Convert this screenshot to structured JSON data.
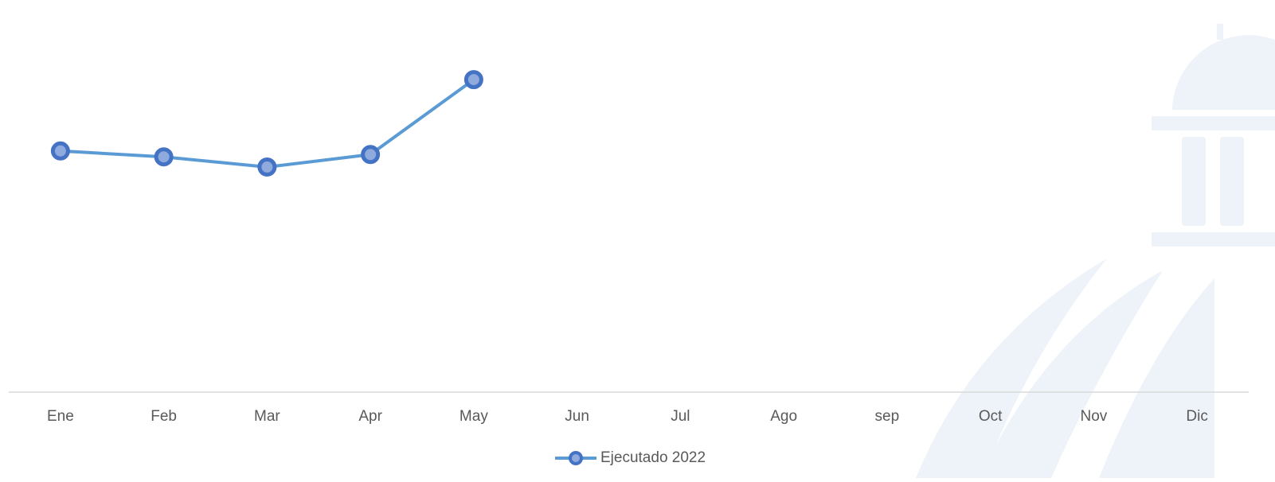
{
  "chart_data": {
    "type": "line",
    "categories": [
      "Ene",
      "Feb",
      "Mar",
      "Apr",
      "May",
      "Jun",
      "Jul",
      "Ago",
      "sep",
      "Oct",
      "Nov",
      "Dic"
    ],
    "series": [
      {
        "name": "Ejecutado 2022",
        "color": "#5b9bd5",
        "marker_color": "#4472c4",
        "values": [
          61.5,
          60.0,
          57.4,
          60.6,
          79.7,
          null,
          null,
          null,
          null,
          null,
          null,
          null
        ]
      }
    ],
    "ylim": [
      0,
      100
    ],
    "legend": "bottom"
  }
}
